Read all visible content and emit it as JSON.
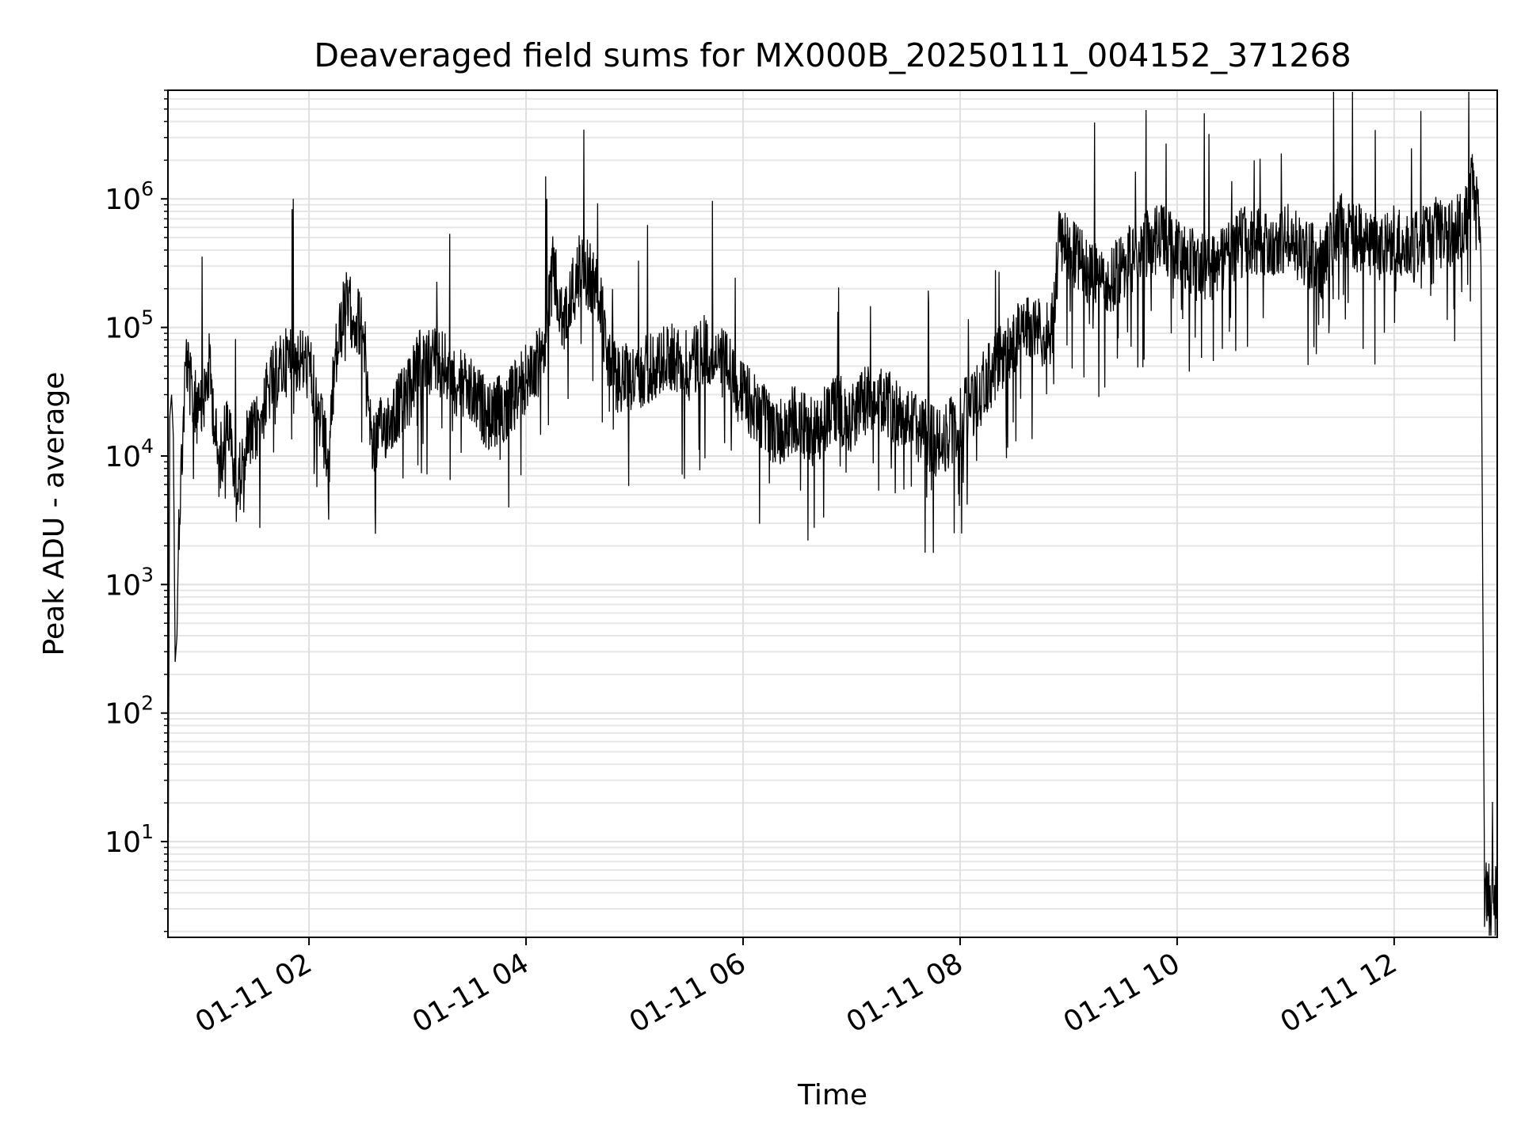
{
  "chart_data": {
    "type": "line",
    "title": "Deaveraged field sums for MX000B_20250111_004152_371268",
    "xlabel": "Time",
    "ylabel": "Peak ADU - average",
    "x_range": [
      "01-11 00:42",
      "01-11 12:57"
    ],
    "y_range": [
      1.8,
      7000000
    ],
    "yscale": "log",
    "grid": true,
    "line_color": "#000000",
    "x_ticks": [
      {
        "value": "01-11 02:00",
        "label": "01-11 02"
      },
      {
        "value": "01-11 04:00",
        "label": "01-11 04"
      },
      {
        "value": "01-11 06:00",
        "label": "01-11 06"
      },
      {
        "value": "01-11 08:00",
        "label": "01-11 08"
      },
      {
        "value": "01-11 10:00",
        "label": "01-11 10"
      },
      {
        "value": "01-11 12:00",
        "label": "01-11 12"
      }
    ],
    "y_ticks": [
      {
        "value": 10,
        "base": "10",
        "exp": "1"
      },
      {
        "value": 100,
        "base": "10",
        "exp": "2"
      },
      {
        "value": 1000,
        "base": "10",
        "exp": "3"
      },
      {
        "value": 10000,
        "base": "10",
        "exp": "4"
      },
      {
        "value": 100000,
        "base": "10",
        "exp": "5"
      },
      {
        "value": 1000000,
        "base": "10",
        "exp": "6"
      }
    ],
    "series": [
      {
        "x": [
          "01-11 00:42",
          "01-11 00:43",
          "01-11 00:44",
          "01-11 00:45",
          "01-11 00:46",
          "01-11 00:47",
          "01-11 00:48",
          "01-11 00:50",
          "01-11 00:52",
          "01-11 00:55",
          "01-11 01:00",
          "01-11 01:05",
          "01-11 01:10",
          "01-11 01:15",
          "01-11 01:20",
          "01-11 01:25",
          "01-11 01:30",
          "01-11 01:40",
          "01-11 01:50",
          "01-11 02:00",
          "01-11 02:10",
          "01-11 02:15",
          "01-11 02:20",
          "01-11 02:30",
          "01-11 02:35",
          "01-11 02:45",
          "01-11 02:55",
          "01-11 03:00",
          "01-11 03:10",
          "01-11 03:20",
          "01-11 03:30",
          "01-11 03:40",
          "01-11 03:50",
          "01-11 04:00",
          "01-11 04:10",
          "01-11 04:15",
          "01-11 04:20",
          "01-11 04:30",
          "01-11 04:40",
          "01-11 04:45",
          "01-11 04:50",
          "01-11 05:00",
          "01-11 05:10",
          "01-11 05:20",
          "01-11 05:30",
          "01-11 05:40",
          "01-11 05:50",
          "01-11 06:00",
          "01-11 06:10",
          "01-11 06:20",
          "01-11 06:30",
          "01-11 06:40",
          "01-11 06:50",
          "01-11 07:00",
          "01-11 07:10",
          "01-11 07:20",
          "01-11 07:30",
          "01-11 07:40",
          "01-11 07:50",
          "01-11 08:00",
          "01-11 08:10",
          "01-11 08:20",
          "01-11 08:30",
          "01-11 08:40",
          "01-11 08:50",
          "01-11 08:55",
          "01-11 09:00",
          "01-11 09:10",
          "01-11 09:20",
          "01-11 09:30",
          "01-11 09:40",
          "01-11 09:50",
          "01-11 10:00",
          "01-11 10:10",
          "01-11 10:20",
          "01-11 10:30",
          "01-11 10:40",
          "01-11 10:50",
          "01-11 11:00",
          "01-11 11:10",
          "01-11 11:20",
          "01-11 11:30",
          "01-11 11:40",
          "01-11 11:50",
          "01-11 12:00",
          "01-11 12:10",
          "01-11 12:20",
          "01-11 12:30",
          "01-11 12:40",
          "01-11 12:43",
          "01-11 12:46",
          "01-11 12:48",
          "01-11 12:49",
          "01-11 12:50",
          "01-11 12:57"
        ],
        "y": [
          2,
          20000,
          30000,
          14000,
          250,
          400,
          3000,
          12000,
          60000,
          30000,
          20000,
          50000,
          8000,
          20000,
          5000,
          12000,
          15000,
          40000,
          60000,
          50000,
          10000,
          60000,
          150000,
          100000,
          12000,
          20000,
          30000,
          50000,
          60000,
          40000,
          30000,
          20000,
          25000,
          40000,
          60000,
          300000,
          100000,
          300000,
          200000,
          60000,
          40000,
          40000,
          50000,
          60000,
          50000,
          70000,
          50000,
          30000,
          20000,
          15000,
          20000,
          15000,
          25000,
          20000,
          30000,
          25000,
          20000,
          15000,
          12000,
          20000,
          30000,
          50000,
          80000,
          100000,
          80000,
          500000,
          400000,
          300000,
          200000,
          300000,
          400000,
          500000,
          400000,
          300000,
          300000,
          400000,
          500000,
          400000,
          500000,
          400000,
          300000,
          600000,
          500000,
          400000,
          500000,
          400000,
          600000,
          500000,
          700000,
          1300000,
          1000000,
          300000,
          1000,
          4,
          4
        ]
      }
    ]
  }
}
